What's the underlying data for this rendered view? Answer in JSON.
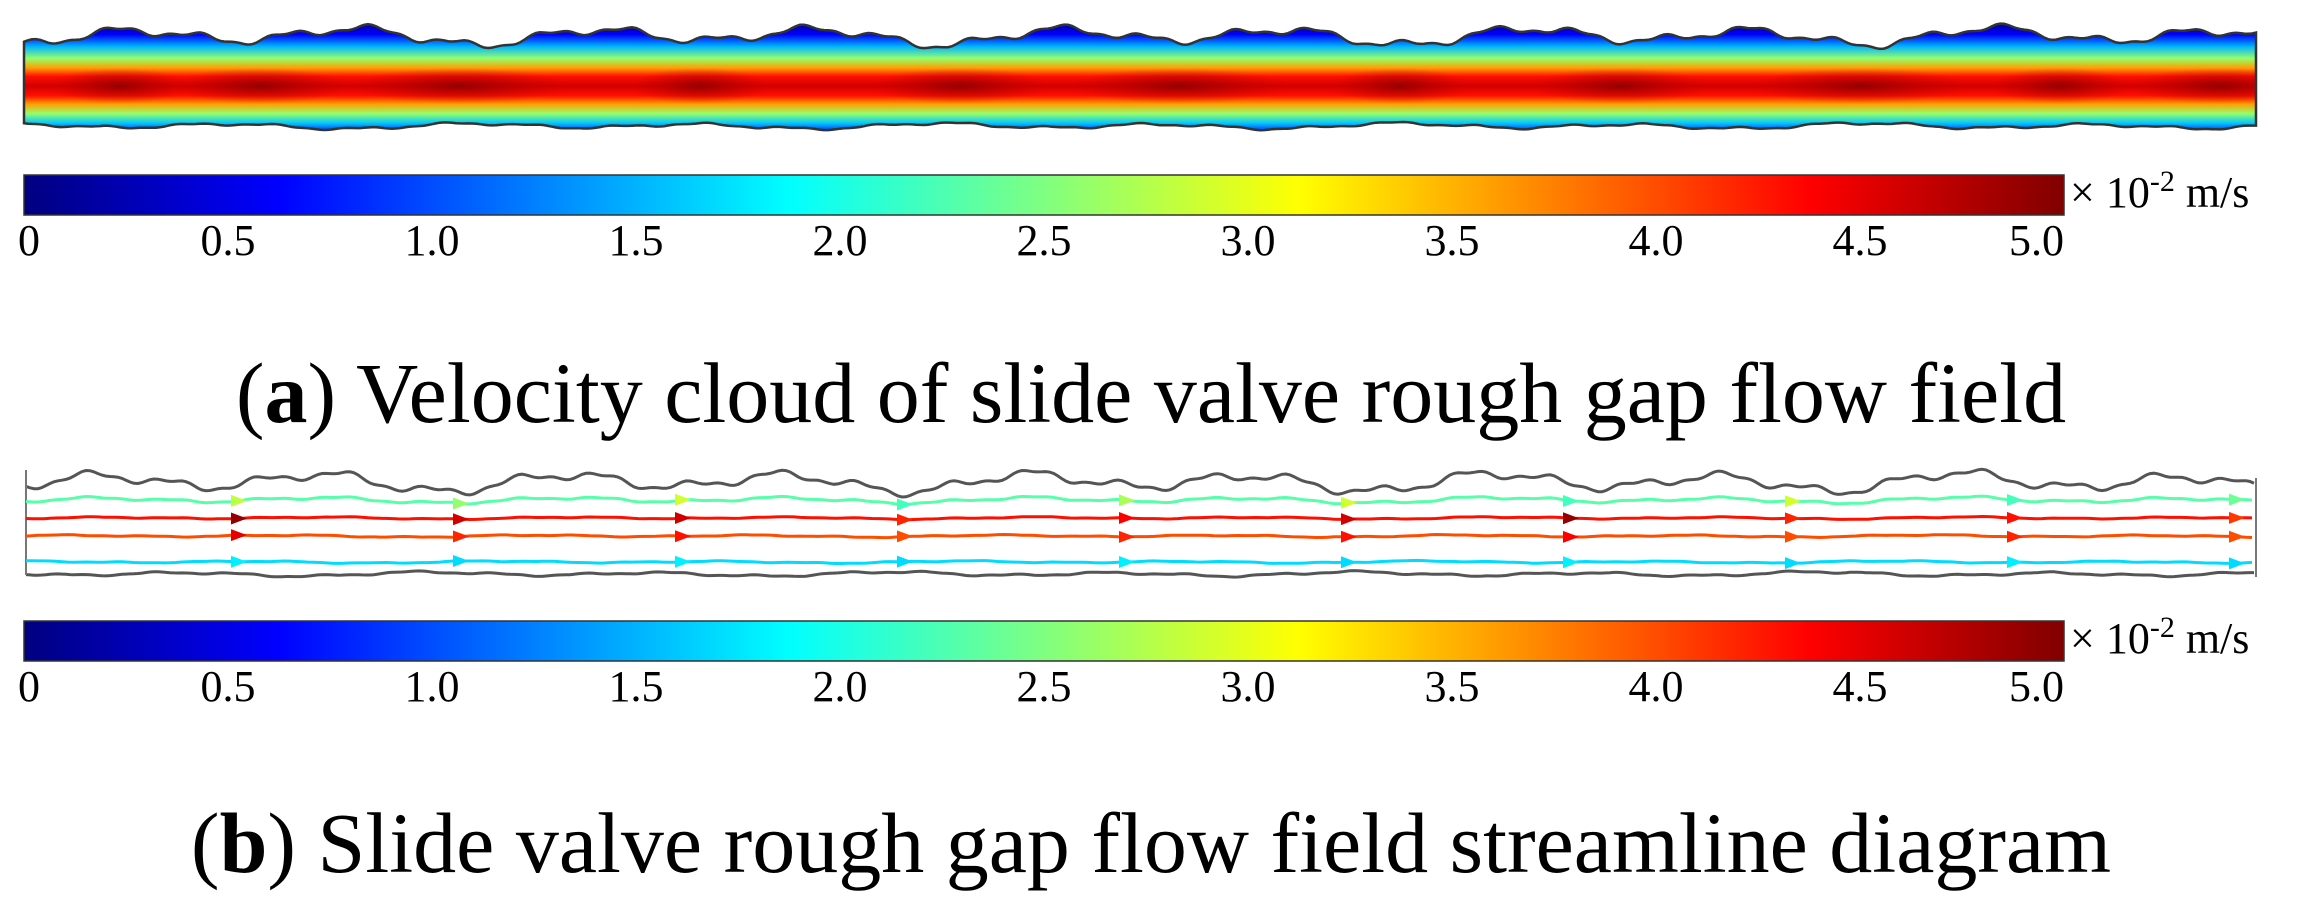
{
  "panels": [
    {
      "id": "a",
      "label": "a",
      "caption": "Velocity cloud of slide valve rough gap flow field",
      "kind": "velocity-contour"
    },
    {
      "id": "b",
      "label": "b",
      "caption": "Slide valve rough gap flow field streamline diagram",
      "kind": "streamlines"
    }
  ],
  "colorbar": {
    "ticks": [
      "0",
      "0.5",
      "1.0",
      "1.5",
      "2.0",
      "2.5",
      "3.0",
      "3.5",
      "4.0",
      "4.5",
      "5.0"
    ],
    "min": 0,
    "max": 5.0,
    "unit_prefix": "× 10",
    "unit_exp": "-2",
    "unit_suffix": " m/s",
    "colormap": [
      "#000080",
      "#0000ff",
      "#0080ff",
      "#00ffff",
      "#80ff80",
      "#ffff00",
      "#ff8000",
      "#ff0000",
      "#800000"
    ]
  },
  "streamlines": [
    {
      "speed": 2.3,
      "arrow_speeds": [
        2.8,
        2.6,
        2.9,
        2.2,
        2.7,
        2.9,
        2.2,
        2.9,
        2.2,
        2.4
      ]
    },
    {
      "speed": 4.3,
      "arrow_speeds": [
        4.9,
        4.6,
        4.6,
        4.2,
        4.4,
        4.6,
        4.9,
        4.2,
        4.3,
        4.1
      ]
    },
    {
      "speed": 4.0,
      "arrow_speeds": [
        4.5,
        4.2,
        4.3,
        4.0,
        4.2,
        4.3,
        4.4,
        4.0,
        4.2,
        4.0
      ]
    },
    {
      "speed": 1.7,
      "arrow_speeds": [
        1.8,
        1.7,
        1.8,
        1.7,
        1.8,
        1.7,
        1.8,
        1.7,
        1.8,
        1.7
      ]
    }
  ]
}
